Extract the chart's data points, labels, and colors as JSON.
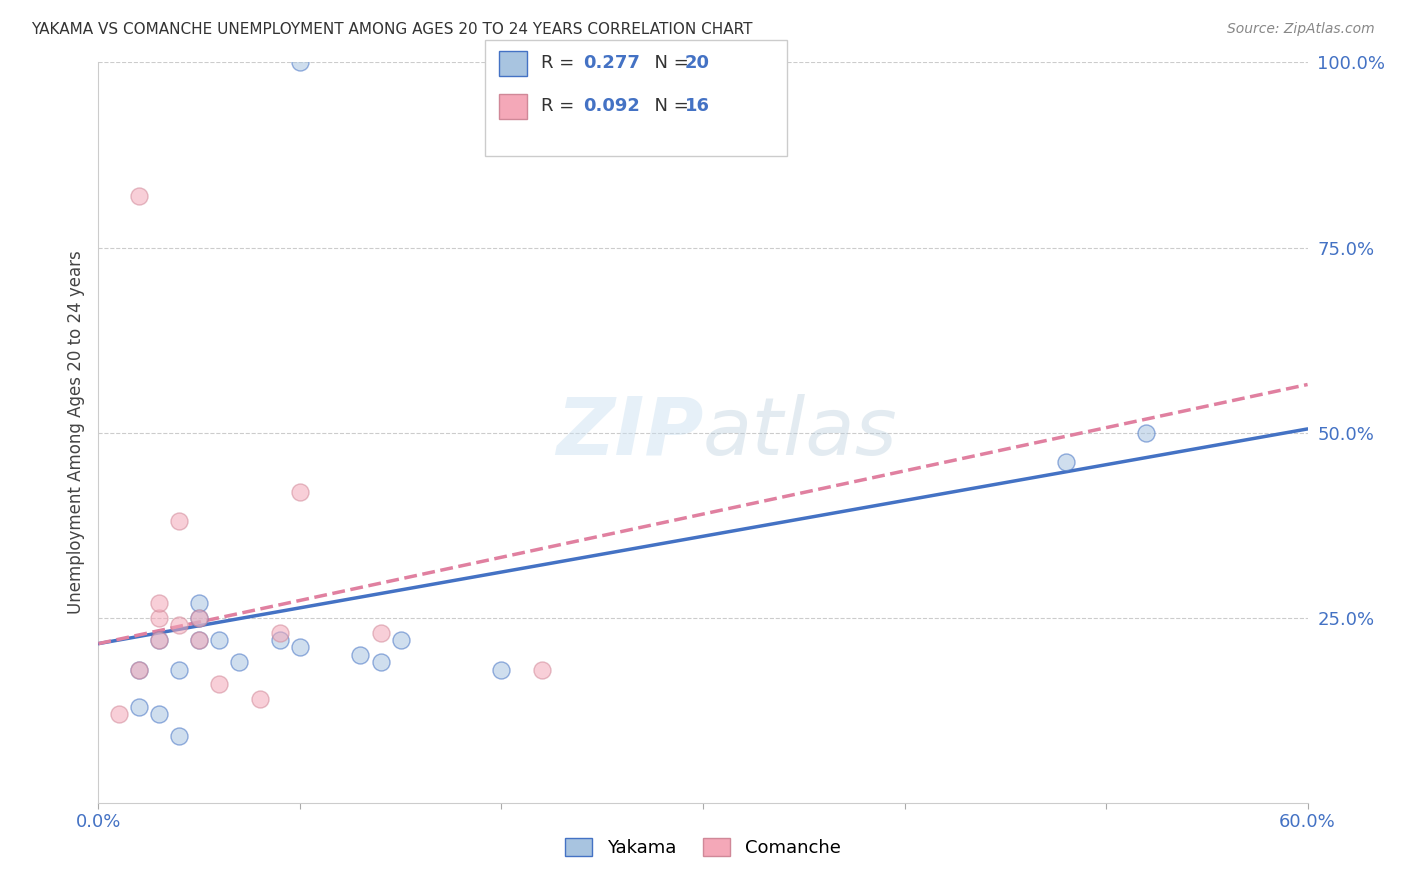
{
  "title": "YAKAMA VS COMANCHE UNEMPLOYMENT AMONG AGES 20 TO 24 YEARS CORRELATION CHART",
  "source": "Source: ZipAtlas.com",
  "ylabel": "Unemployment Among Ages 20 to 24 years",
  "xlim": [
    0.0,
    0.6
  ],
  "ylim": [
    0.0,
    1.0
  ],
  "ytick_positions": [
    0.25,
    0.5,
    0.75,
    1.0
  ],
  "ytick_labels_right": [
    "25.0%",
    "50.0%",
    "75.0%",
    "100.0%"
  ],
  "yakama_color": "#a8c4e0",
  "comanche_color": "#f4a8b8",
  "yakama_line_color": "#4472c4",
  "comanche_line_color": "#e080a0",
  "yakama_R": 0.277,
  "yakama_N": 20,
  "comanche_R": 0.092,
  "comanche_N": 16,
  "legend_text_color": "#333333",
  "legend_value_color": "#4472c4",
  "background_color": "#ffffff",
  "grid_color": "#cccccc",
  "title_color": "#333333",
  "axis_color": "#4472c4",
  "yakama_x": [
    0.1,
    0.02,
    0.02,
    0.03,
    0.03,
    0.04,
    0.04,
    0.05,
    0.05,
    0.05,
    0.06,
    0.07,
    0.09,
    0.1,
    0.13,
    0.14,
    0.15,
    0.2,
    0.48,
    0.52
  ],
  "yakama_y": [
    1.0,
    0.13,
    0.18,
    0.12,
    0.22,
    0.09,
    0.18,
    0.22,
    0.25,
    0.27,
    0.22,
    0.19,
    0.22,
    0.21,
    0.2,
    0.19,
    0.22,
    0.18,
    0.46,
    0.5
  ],
  "comanche_x": [
    0.02,
    0.01,
    0.02,
    0.03,
    0.03,
    0.04,
    0.05,
    0.05,
    0.06,
    0.08,
    0.09,
    0.1,
    0.14,
    0.22,
    0.03,
    0.04
  ],
  "comanche_y": [
    0.82,
    0.12,
    0.18,
    0.25,
    0.27,
    0.38,
    0.22,
    0.25,
    0.16,
    0.14,
    0.23,
    0.42,
    0.23,
    0.18,
    0.22,
    0.24
  ],
  "marker_size": 150,
  "marker_alpha": 0.55,
  "line_width": 2.5,
  "yakama_trend_x": [
    0.0,
    0.6
  ],
  "yakama_trend_y": [
    0.215,
    0.505
  ],
  "comanche_trend_x": [
    0.0,
    0.6
  ],
  "comanche_trend_y": [
    0.215,
    0.565
  ]
}
